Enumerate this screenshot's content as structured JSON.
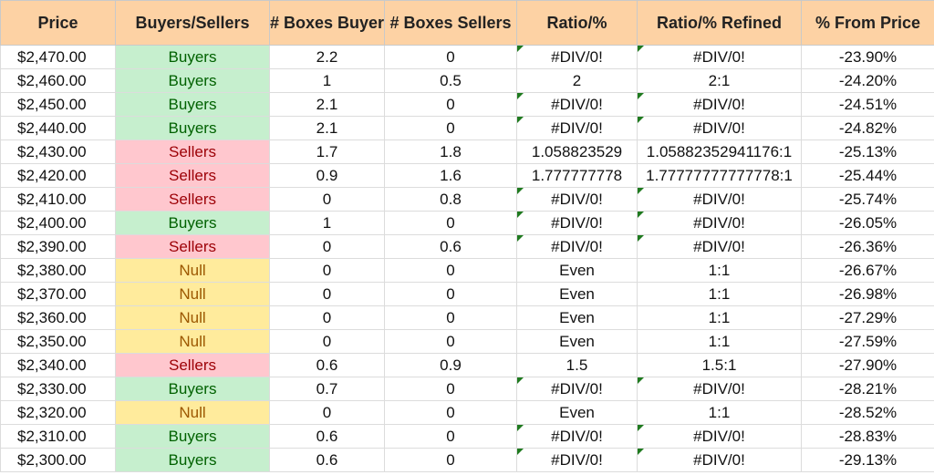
{
  "columns": [
    "Price",
    "Buyers/Sellers",
    "# Boxes Buyers",
    "# Boxes Sellers",
    "Ratio/%",
    "Ratio/% Refined",
    "% From Price"
  ],
  "colors": {
    "header_bg": "#fdd2a4",
    "buyers_bg": "#c6efce",
    "buyers_text": "#006100",
    "sellers_bg": "#ffc7ce",
    "sellers_text": "#9c0006",
    "null_bg": "#ffeb9c",
    "null_text": "#9c5700",
    "error_flag": "#1f7a1f"
  },
  "rows": [
    {
      "price": "$2,470.00",
      "side": "Buyers",
      "boxes_buyers": "2.2",
      "boxes_sellers": "0",
      "ratio": "#DIV/0!",
      "ratio_refined": "#DIV/0!",
      "from_price": "-23.90%",
      "flag": true
    },
    {
      "price": "$2,460.00",
      "side": "Buyers",
      "boxes_buyers": "1",
      "boxes_sellers": "0.5",
      "ratio": "2",
      "ratio_refined": "2:1",
      "from_price": "-24.20%",
      "flag": false
    },
    {
      "price": "$2,450.00",
      "side": "Buyers",
      "boxes_buyers": "2.1",
      "boxes_sellers": "0",
      "ratio": "#DIV/0!",
      "ratio_refined": "#DIV/0!",
      "from_price": "-24.51%",
      "flag": true
    },
    {
      "price": "$2,440.00",
      "side": "Buyers",
      "boxes_buyers": "2.1",
      "boxes_sellers": "0",
      "ratio": "#DIV/0!",
      "ratio_refined": "#DIV/0!",
      "from_price": "-24.82%",
      "flag": true
    },
    {
      "price": "$2,430.00",
      "side": "Sellers",
      "boxes_buyers": "1.7",
      "boxes_sellers": "1.8",
      "ratio": "1.058823529",
      "ratio_refined": "1.05882352941176:1",
      "from_price": "-25.13%",
      "flag": false
    },
    {
      "price": "$2,420.00",
      "side": "Sellers",
      "boxes_buyers": "0.9",
      "boxes_sellers": "1.6",
      "ratio": "1.777777778",
      "ratio_refined": "1.77777777777778:1",
      "from_price": "-25.44%",
      "flag": false
    },
    {
      "price": "$2,410.00",
      "side": "Sellers",
      "boxes_buyers": "0",
      "boxes_sellers": "0.8",
      "ratio": "#DIV/0!",
      "ratio_refined": "#DIV/0!",
      "from_price": "-25.74%",
      "flag": true
    },
    {
      "price": "$2,400.00",
      "side": "Buyers",
      "boxes_buyers": "1",
      "boxes_sellers": "0",
      "ratio": "#DIV/0!",
      "ratio_refined": "#DIV/0!",
      "from_price": "-26.05%",
      "flag": true
    },
    {
      "price": "$2,390.00",
      "side": "Sellers",
      "boxes_buyers": "0",
      "boxes_sellers": "0.6",
      "ratio": "#DIV/0!",
      "ratio_refined": "#DIV/0!",
      "from_price": "-26.36%",
      "flag": true
    },
    {
      "price": "$2,380.00",
      "side": "Null",
      "boxes_buyers": "0",
      "boxes_sellers": "0",
      "ratio": "Even",
      "ratio_refined": "1:1",
      "from_price": "-26.67%",
      "flag": false
    },
    {
      "price": "$2,370.00",
      "side": "Null",
      "boxes_buyers": "0",
      "boxes_sellers": "0",
      "ratio": "Even",
      "ratio_refined": "1:1",
      "from_price": "-26.98%",
      "flag": false
    },
    {
      "price": "$2,360.00",
      "side": "Null",
      "boxes_buyers": "0",
      "boxes_sellers": "0",
      "ratio": "Even",
      "ratio_refined": "1:1",
      "from_price": "-27.29%",
      "flag": false
    },
    {
      "price": "$2,350.00",
      "side": "Null",
      "boxes_buyers": "0",
      "boxes_sellers": "0",
      "ratio": "Even",
      "ratio_refined": "1:1",
      "from_price": "-27.59%",
      "flag": false
    },
    {
      "price": "$2,340.00",
      "side": "Sellers",
      "boxes_buyers": "0.6",
      "boxes_sellers": "0.9",
      "ratio": "1.5",
      "ratio_refined": "1.5:1",
      "from_price": "-27.90%",
      "flag": false
    },
    {
      "price": "$2,330.00",
      "side": "Buyers",
      "boxes_buyers": "0.7",
      "boxes_sellers": "0",
      "ratio": "#DIV/0!",
      "ratio_refined": "#DIV/0!",
      "from_price": "-28.21%",
      "flag": true
    },
    {
      "price": "$2,320.00",
      "side": "Null",
      "boxes_buyers": "0",
      "boxes_sellers": "0",
      "ratio": "Even",
      "ratio_refined": "1:1",
      "from_price": "-28.52%",
      "flag": false
    },
    {
      "price": "$2,310.00",
      "side": "Buyers",
      "boxes_buyers": "0.6",
      "boxes_sellers": "0",
      "ratio": "#DIV/0!",
      "ratio_refined": "#DIV/0!",
      "from_price": "-28.83%",
      "flag": true
    },
    {
      "price": "$2,300.00",
      "side": "Buyers",
      "boxes_buyers": "0.6",
      "boxes_sellers": "0",
      "ratio": "#DIV/0!",
      "ratio_refined": "#DIV/0!",
      "from_price": "-29.13%",
      "flag": true
    }
  ]
}
